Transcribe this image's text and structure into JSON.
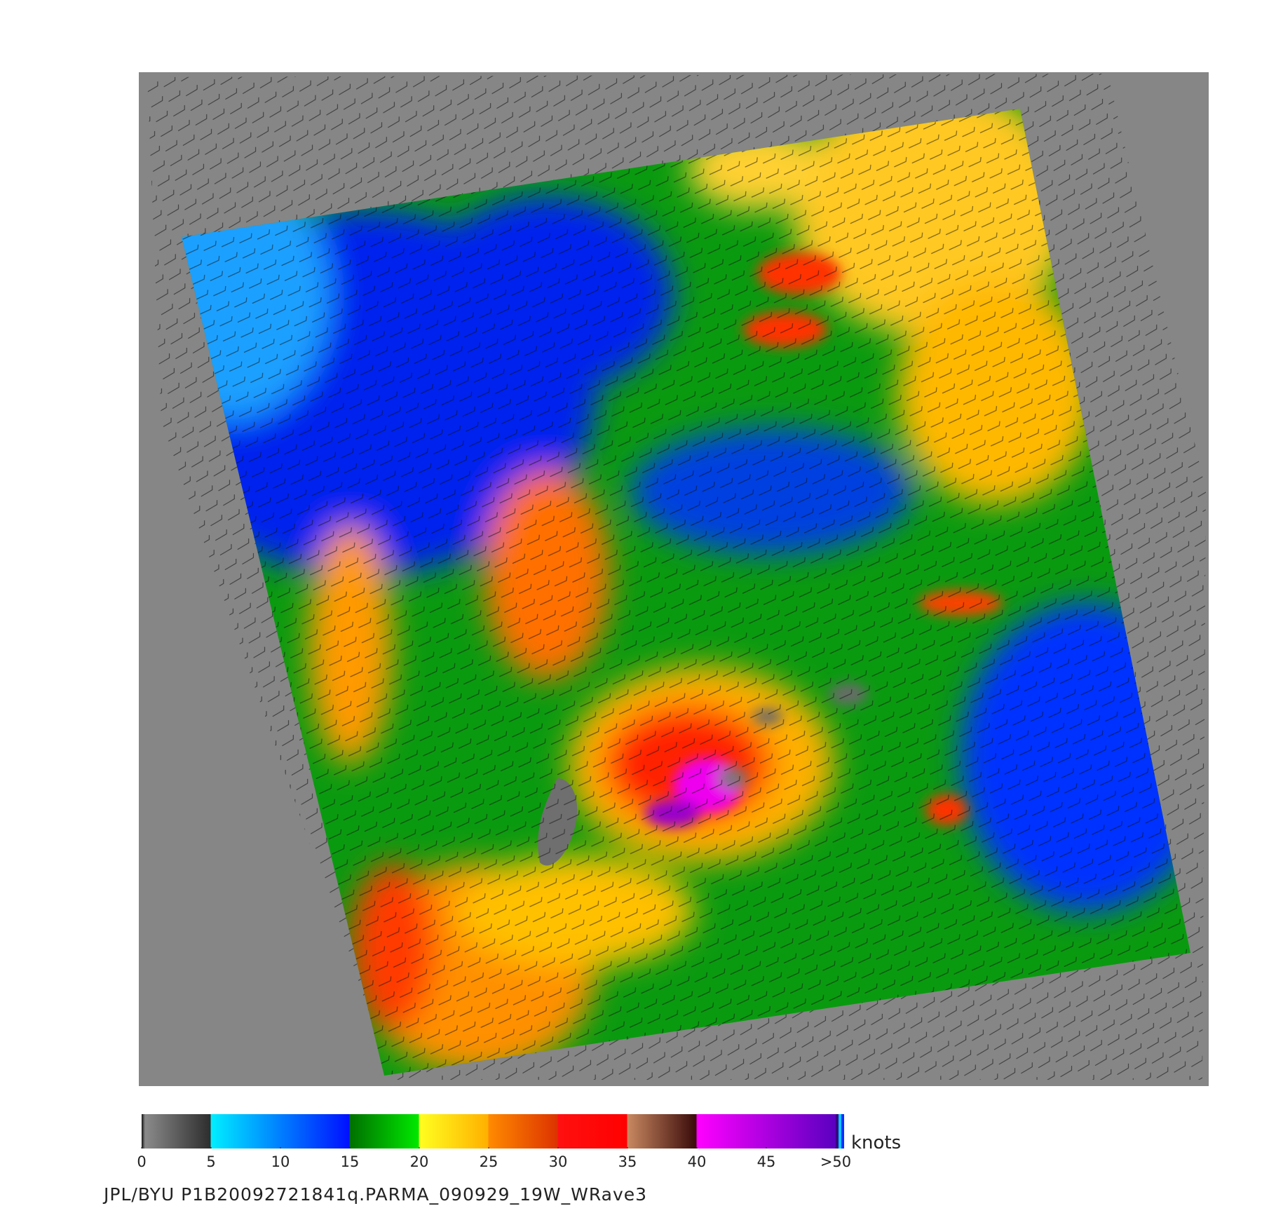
{
  "colorbar": {
    "ticks": [
      0,
      5,
      10,
      15,
      20,
      25,
      30,
      35,
      40,
      45,
      {
        "value": 50,
        "label": ">50"
      }
    ],
    "unit": "knots"
  },
  "caption": "JPL/BYU  P1B20092721841q.PARMA_090929_19W_WRave3"
}
